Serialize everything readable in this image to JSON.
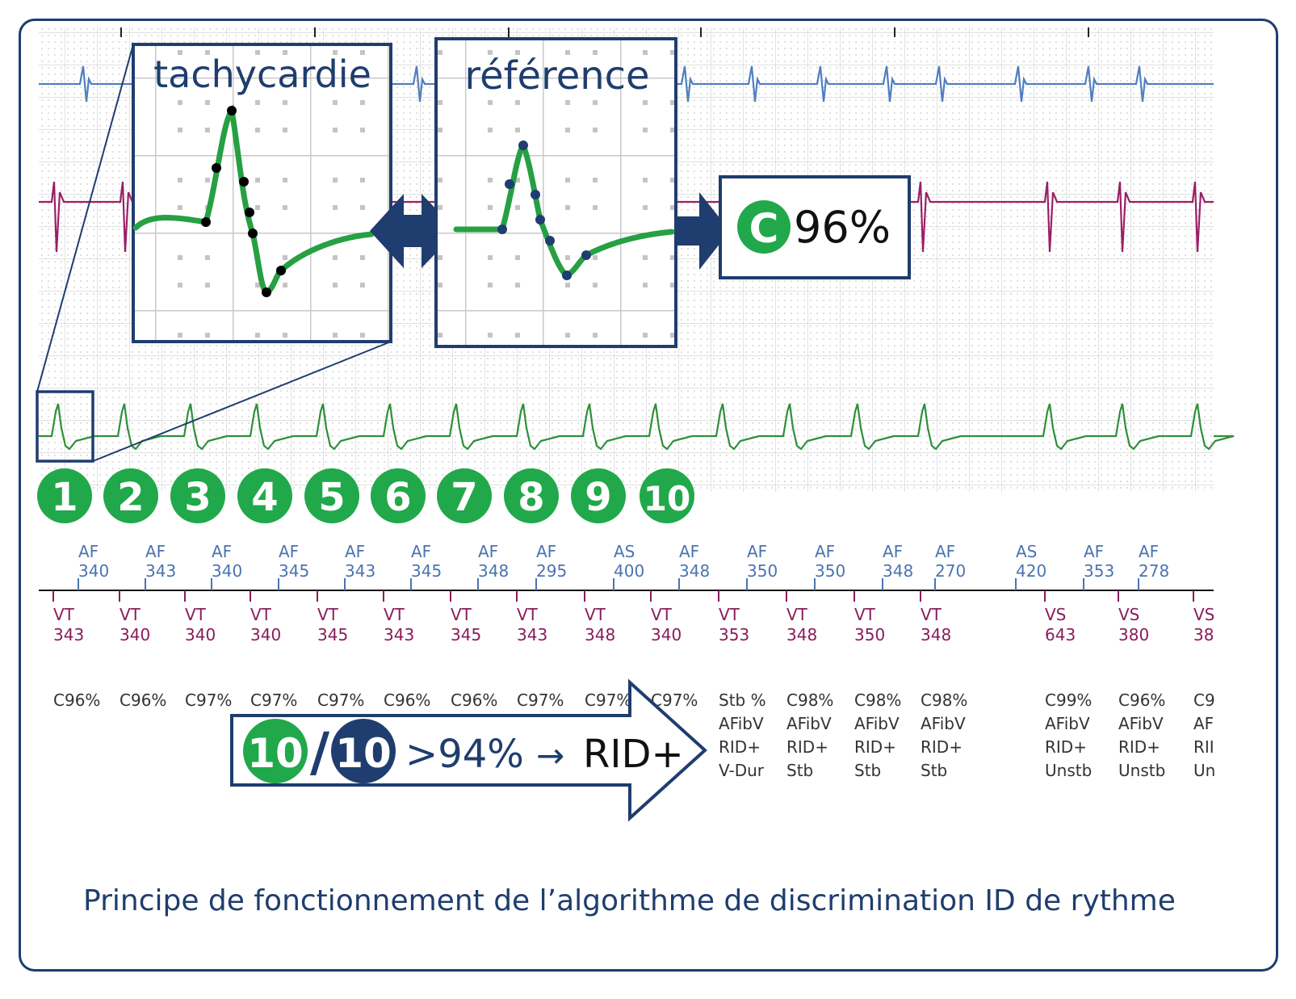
{
  "zoom_tachycardie": {
    "title": "tachycardie"
  },
  "zoom_reference": {
    "title": "référence"
  },
  "match_result": {
    "badge": "C",
    "value": "96%"
  },
  "beat_numbers": [
    "1",
    "2",
    "3",
    "4",
    "5",
    "6",
    "7",
    "8",
    "9",
    "10"
  ],
  "atrial_markers": [
    {
      "label": "AF",
      "value": "340"
    },
    {
      "label": "AF",
      "value": "343"
    },
    {
      "label": "AF",
      "value": "340"
    },
    {
      "label": "AF",
      "value": "345"
    },
    {
      "label": "AF",
      "value": "343"
    },
    {
      "label": "AF",
      "value": "345"
    },
    {
      "label": "AF",
      "value": "348"
    },
    {
      "label": "AF",
      "value": "295"
    },
    {
      "label": "AS",
      "value": "400"
    },
    {
      "label": "AF",
      "value": "348"
    },
    {
      "label": "AF",
      "value": "350"
    },
    {
      "label": "AF",
      "value": "350"
    },
    {
      "label": "AF",
      "value": "348"
    },
    {
      "label": "AF",
      "value": "270"
    },
    {
      "label": "AS",
      "value": "420"
    },
    {
      "label": "AF",
      "value": "353"
    },
    {
      "label": "AF",
      "value": "278"
    }
  ],
  "ventricular_markers": [
    {
      "label": "VT",
      "value": "343"
    },
    {
      "label": "VT",
      "value": "340"
    },
    {
      "label": "VT",
      "value": "340"
    },
    {
      "label": "VT",
      "value": "340"
    },
    {
      "label": "VT",
      "value": "345"
    },
    {
      "label": "VT",
      "value": "343"
    },
    {
      "label": "VT",
      "value": "345"
    },
    {
      "label": "VT",
      "value": "343"
    },
    {
      "label": "VT",
      "value": "348"
    },
    {
      "label": "VT",
      "value": "340"
    },
    {
      "label": "VT",
      "value": "353"
    },
    {
      "label": "VT",
      "value": "348"
    },
    {
      "label": "VT",
      "value": "350"
    },
    {
      "label": "VT",
      "value": "348"
    },
    {
      "label": "VS",
      "value": "643"
    },
    {
      "label": "VS",
      "value": "380"
    },
    {
      "label": "VS",
      "value": "38"
    }
  ],
  "correlation_labels": [
    "C96%",
    "C96%",
    "C97%",
    "C97%",
    "C97%",
    "C96%",
    "C96%",
    "C97%",
    "C97%",
    "C97%"
  ],
  "detection_columns": [
    [
      "Stb %",
      "AFibV",
      "RID+",
      "V-Dur"
    ],
    [
      "C98%",
      "AFibV",
      "RID+",
      "Stb"
    ],
    [
      "C98%",
      "AFibV",
      "RID+",
      "Stb"
    ],
    [
      "C98%",
      "AFibV",
      "RID+",
      "Stb"
    ],
    [
      "C99%",
      "AFibV",
      "RID+",
      "Unstb"
    ],
    [
      "C96%",
      "AFibV",
      "RID+",
      "Unstb"
    ],
    [
      "C9",
      "AF",
      "RII",
      "Un"
    ]
  ],
  "decision": {
    "numerator": "10",
    "slash": "/",
    "denominator": "10",
    "threshold": ">94%",
    "arrow": "→",
    "result": "RID+"
  },
  "caption": "Principe de fonctionnement de l’algorithme de discrimination ID de rythme",
  "colors": {
    "navy": "#1f3d6e",
    "green": "#21a84a",
    "egm_green": "#2f8f3a",
    "blue_trace": "#4f7fbf",
    "magenta_trace": "#9a1f66",
    "marker_blue": "#4a74b0",
    "marker_magenta": "#8a1c5c",
    "grid": "#d4d4d4"
  }
}
